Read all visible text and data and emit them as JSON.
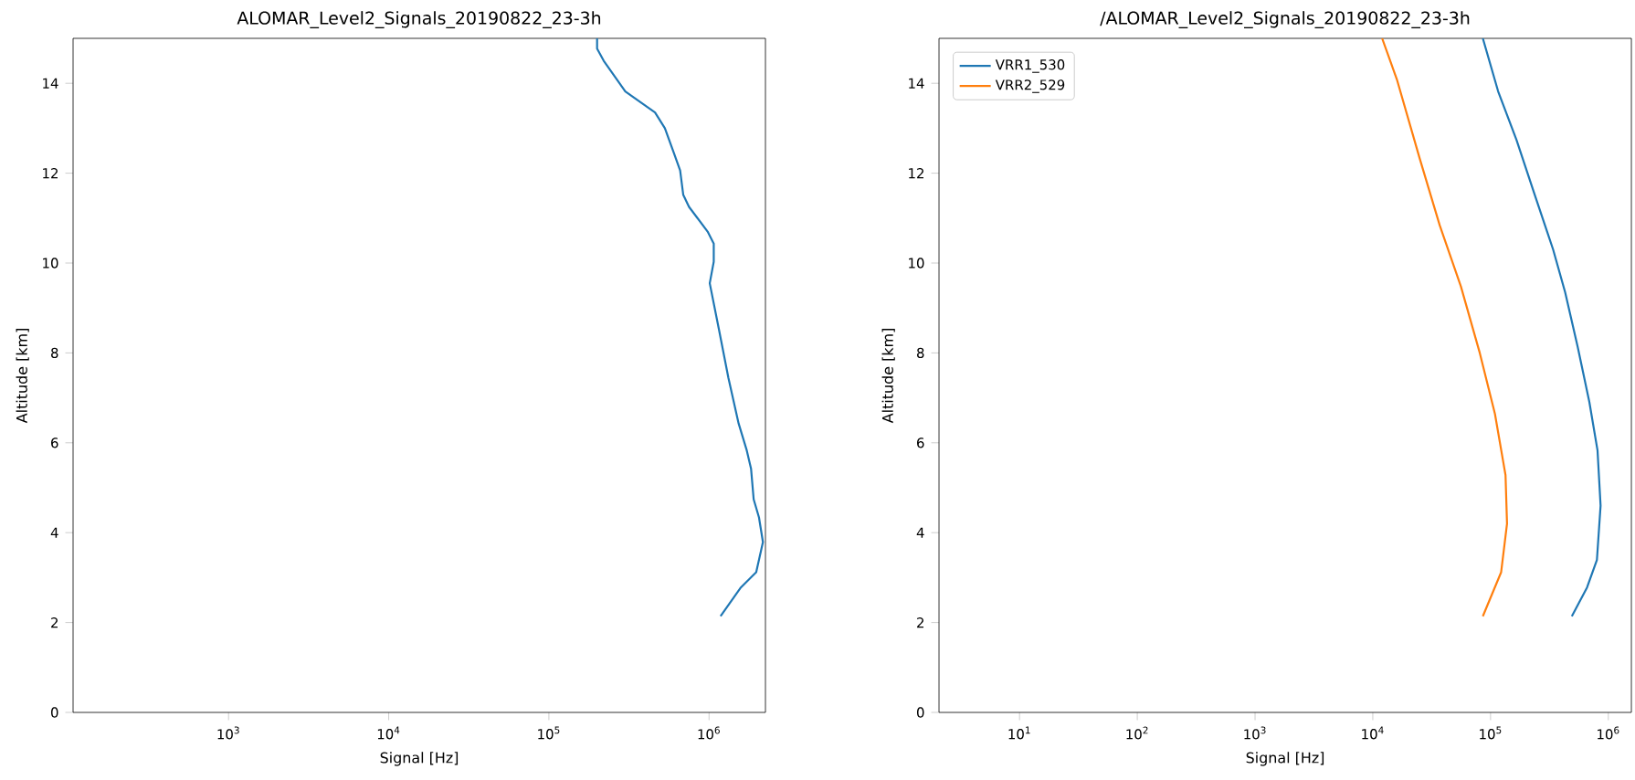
{
  "chart_data": [
    {
      "type": "line",
      "title": "ALOMAR_Level2_Signals_20190822_23-3h",
      "xlabel": "Signal [Hz]",
      "ylabel": "Altitude [km]",
      "log": "x",
      "grid": false,
      "legend": false,
      "xlim": [
        107,
        2250000
      ],
      "ylim": [
        0,
        15
      ],
      "xticks": [
        {
          "value": 1000,
          "label": "10$^{3}$"
        },
        {
          "value": 10000,
          "label": "10$^{4}$"
        },
        {
          "value": 100000,
          "label": "10$^{5}$"
        },
        {
          "value": 1000000,
          "label": "10$^{6}$"
        }
      ],
      "yticks": [
        0,
        2,
        4,
        6,
        8,
        10,
        12,
        14
      ],
      "series": [
        {
          "color": "#1f77b4",
          "x": [
            200000,
            200000,
            220000,
            300000,
            340000,
            460000,
            530000,
            600000,
            660000,
            690000,
            750000,
            980000,
            1070000,
            1070000,
            1010000,
            1150000,
            1320000,
            1530000,
            1720000,
            1830000,
            1900000,
            2050000,
            2170000,
            1970000,
            1580000,
            1180000
          ],
          "values": [
            15.0,
            14.77,
            14.5,
            13.82,
            13.68,
            13.35,
            13.0,
            12.47,
            12.06,
            11.52,
            11.25,
            10.7,
            10.43,
            10.03,
            9.55,
            8.54,
            7.45,
            6.43,
            5.83,
            5.42,
            4.74,
            4.34,
            3.79,
            3.12,
            2.78,
            2.14
          ]
        }
      ]
    },
    {
      "type": "line",
      "title": "/ALOMAR_Level2_Signals_20190822_23-3h",
      "xlabel": "Signal [Hz]",
      "ylabel": "Altitude [km]",
      "log": "x",
      "grid": false,
      "legend": "top left",
      "xlim": [
        2.07,
        1570000
      ],
      "ylim": [
        0,
        15
      ],
      "xticks": [
        {
          "value": 10,
          "label": "10$^{1}$"
        },
        {
          "value": 100,
          "label": "10$^{2}$"
        },
        {
          "value": 1000,
          "label": "10$^{3}$"
        },
        {
          "value": 10000,
          "label": "10$^{4}$"
        },
        {
          "value": 100000,
          "label": "10$^{5}$"
        },
        {
          "value": 1000000,
          "label": "10$^{6}$"
        }
      ],
      "yticks": [
        0,
        2,
        4,
        6,
        8,
        10,
        12,
        14
      ],
      "series": [
        {
          "name": "VRR1_530",
          "color": "#1f77b4",
          "x": [
            86000,
            116000,
            166000,
            237000,
            340000,
            430000,
            550000,
            690000,
            810000,
            860000,
            800000,
            660000,
            490000
          ],
          "values": [
            15.0,
            13.82,
            12.74,
            11.52,
            10.3,
            9.35,
            8.13,
            6.91,
            5.83,
            4.6,
            3.39,
            2.78,
            2.14
          ]
        },
        {
          "name": "VRR2_529",
          "color": "#ff7f0e",
          "x": [
            12000,
            16000,
            25000,
            37000,
            56000,
            81000,
            109000,
            134000,
            138000,
            123000,
            86000
          ],
          "values": [
            15.0,
            14.09,
            12.33,
            10.84,
            9.48,
            8.0,
            6.64,
            5.28,
            4.2,
            3.12,
            2.14
          ]
        }
      ]
    }
  ]
}
